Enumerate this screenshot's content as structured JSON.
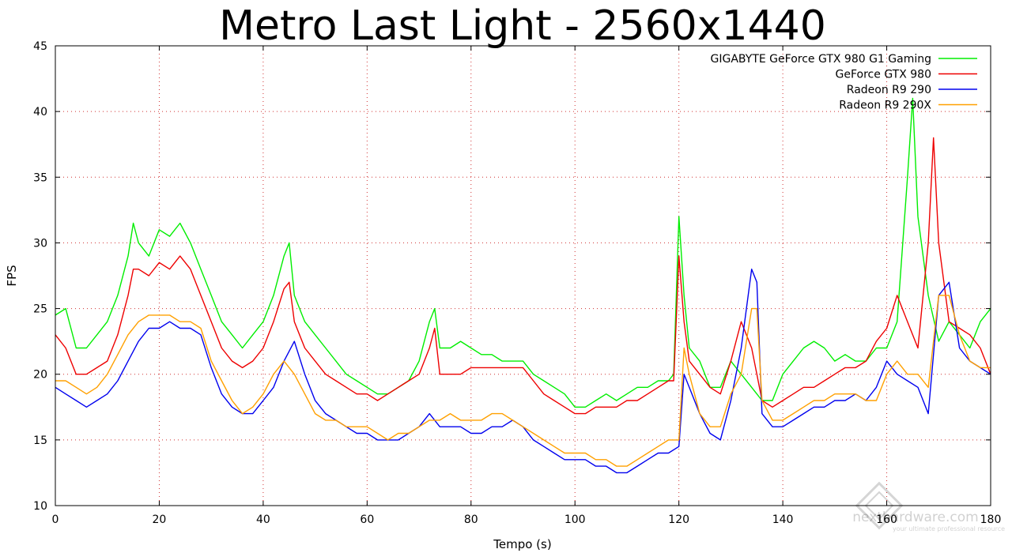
{
  "chart_data": {
    "type": "line",
    "title": "Metro Last Light - 2560x1440",
    "xlabel": "Tempo (s)",
    "ylabel": "FPS",
    "xlim": [
      0,
      180
    ],
    "ylim": [
      10,
      45
    ],
    "xticks": [
      0,
      20,
      40,
      60,
      80,
      100,
      120,
      140,
      160,
      180
    ],
    "yticks": [
      10,
      15,
      20,
      25,
      30,
      35,
      40,
      45
    ],
    "grid": true,
    "legend_position": "top-right",
    "series": [
      {
        "name": "GIGABYTE GeForce GTX 980 G1 Gaming",
        "color": "#00ee00",
        "x": [
          0,
          2,
          4,
          6,
          8,
          10,
          12,
          14,
          15,
          16,
          18,
          20,
          22,
          24,
          26,
          28,
          30,
          32,
          34,
          36,
          38,
          40,
          42,
          44,
          45,
          46,
          48,
          50,
          52,
          54,
          56,
          58,
          60,
          62,
          64,
          66,
          68,
          70,
          72,
          73,
          74,
          76,
          78,
          80,
          82,
          84,
          86,
          88,
          90,
          92,
          94,
          96,
          98,
          100,
          102,
          104,
          106,
          108,
          110,
          112,
          114,
          116,
          118,
          119,
          120,
          121,
          122,
          124,
          126,
          128,
          130,
          132,
          134,
          135,
          136,
          138,
          140,
          142,
          144,
          146,
          148,
          150,
          152,
          154,
          156,
          158,
          160,
          162,
          164,
          165,
          166,
          168,
          170,
          172,
          174,
          176,
          178,
          180
        ],
        "y": [
          24.5,
          25,
          22,
          22,
          23,
          24,
          26,
          29,
          31.5,
          30,
          29,
          31,
          30.5,
          31.5,
          30,
          28,
          26,
          24,
          23,
          22,
          23,
          24,
          26,
          29,
          30,
          26,
          24,
          23,
          22,
          21,
          20,
          19.5,
          19,
          18.5,
          18.5,
          19,
          19.5,
          21,
          24,
          25,
          22,
          22,
          22.5,
          22,
          21.5,
          21.5,
          21,
          21,
          21,
          20,
          19.5,
          19,
          18.5,
          17.5,
          17.5,
          18,
          18.5,
          18,
          18.5,
          19,
          19,
          19.5,
          19.5,
          20,
          32,
          26,
          22,
          21,
          19,
          19,
          21,
          20,
          19,
          18.5,
          18,
          18,
          20,
          21,
          22,
          22.5,
          22,
          21,
          21.5,
          21,
          21,
          22,
          22,
          24,
          35,
          41,
          32,
          26,
          22.5,
          24,
          23,
          22,
          24,
          25
        ]
      },
      {
        "name": "GeForce GTX 980",
        "color": "#ee0000",
        "x": [
          0,
          2,
          4,
          6,
          8,
          10,
          12,
          14,
          15,
          16,
          18,
          20,
          22,
          24,
          26,
          28,
          30,
          32,
          34,
          36,
          38,
          40,
          42,
          44,
          45,
          46,
          48,
          50,
          52,
          54,
          56,
          58,
          60,
          62,
          64,
          66,
          68,
          70,
          72,
          73,
          74,
          76,
          78,
          80,
          82,
          84,
          86,
          88,
          90,
          92,
          94,
          96,
          98,
          100,
          102,
          104,
          106,
          108,
          110,
          112,
          114,
          116,
          118,
          119,
          120,
          121,
          122,
          124,
          126,
          128,
          130,
          132,
          134,
          135,
          136,
          138,
          140,
          142,
          144,
          146,
          148,
          150,
          152,
          154,
          156,
          158,
          160,
          162,
          164,
          166,
          168,
          169,
          170,
          172,
          174,
          176,
          178,
          180
        ],
        "y": [
          23,
          22,
          20,
          20,
          20.5,
          21,
          23,
          26,
          28,
          28,
          27.5,
          28.5,
          28,
          29,
          28,
          26,
          24,
          22,
          21,
          20.5,
          21,
          22,
          24,
          26.5,
          27,
          24,
          22,
          21,
          20,
          19.5,
          19,
          18.5,
          18.5,
          18,
          18.5,
          19,
          19.5,
          20,
          22,
          23.5,
          20,
          20,
          20,
          20.5,
          20.5,
          20.5,
          20.5,
          20.5,
          20.5,
          19.5,
          18.5,
          18,
          17.5,
          17,
          17,
          17.5,
          17.5,
          17.5,
          18,
          18,
          18.5,
          19,
          19.5,
          19.5,
          29,
          24,
          21,
          20,
          19,
          18.5,
          21,
          24,
          22,
          20,
          18,
          17.5,
          18,
          18.5,
          19,
          19,
          19.5,
          20,
          20.5,
          20.5,
          21,
          22.5,
          23.5,
          26,
          24,
          22,
          30,
          38,
          30,
          24,
          23.5,
          23,
          22,
          20
        ]
      },
      {
        "name": "Radeon R9 290",
        "color": "#0000ee",
        "x": [
          0,
          2,
          4,
          6,
          8,
          10,
          12,
          14,
          16,
          18,
          20,
          22,
          24,
          26,
          28,
          30,
          32,
          34,
          36,
          38,
          40,
          42,
          44,
          46,
          48,
          50,
          52,
          54,
          56,
          58,
          60,
          62,
          64,
          66,
          68,
          70,
          72,
          74,
          76,
          78,
          80,
          82,
          84,
          86,
          88,
          90,
          92,
          94,
          96,
          98,
          100,
          102,
          104,
          106,
          108,
          110,
          112,
          114,
          116,
          118,
          120,
          121,
          122,
          124,
          126,
          128,
          130,
          132,
          134,
          135,
          136,
          138,
          140,
          142,
          144,
          146,
          148,
          150,
          152,
          154,
          156,
          158,
          160,
          162,
          164,
          166,
          168,
          170,
          172,
          174,
          176,
          178,
          180
        ],
        "y": [
          19,
          18.5,
          18,
          17.5,
          18,
          18.5,
          19.5,
          21,
          22.5,
          23.5,
          23.5,
          24,
          23.5,
          23.5,
          23,
          20.5,
          18.5,
          17.5,
          17,
          17,
          18,
          19,
          21,
          22.5,
          20,
          18,
          17,
          16.5,
          16,
          15.5,
          15.5,
          15,
          15,
          15,
          15.5,
          16,
          17,
          16,
          16,
          16,
          15.5,
          15.5,
          16,
          16,
          16.5,
          16,
          15,
          14.5,
          14,
          13.5,
          13.5,
          13.5,
          13,
          13,
          12.5,
          12.5,
          13,
          13.5,
          14,
          14,
          14.5,
          20,
          19,
          17,
          15.5,
          15,
          18,
          22,
          28,
          27,
          17,
          16,
          16,
          16.5,
          17,
          17.5,
          17.5,
          18,
          18,
          18.5,
          18,
          19,
          21,
          20,
          19.5,
          19,
          17,
          26,
          27,
          22,
          21,
          20.5,
          20
        ]
      },
      {
        "name": "Radeon R9 290X",
        "color": "#ffa000",
        "x": [
          0,
          2,
          4,
          6,
          8,
          10,
          12,
          14,
          16,
          18,
          20,
          22,
          24,
          26,
          28,
          30,
          32,
          34,
          36,
          38,
          40,
          42,
          44,
          46,
          48,
          50,
          52,
          54,
          56,
          58,
          60,
          62,
          64,
          66,
          68,
          70,
          72,
          74,
          76,
          78,
          80,
          82,
          84,
          86,
          88,
          90,
          92,
          94,
          96,
          98,
          100,
          102,
          104,
          106,
          108,
          110,
          112,
          114,
          116,
          118,
          120,
          121,
          122,
          124,
          126,
          128,
          130,
          132,
          134,
          135,
          136,
          138,
          140,
          142,
          144,
          146,
          148,
          150,
          152,
          154,
          156,
          158,
          160,
          162,
          164,
          166,
          168,
          170,
          172,
          174,
          176,
          178,
          180
        ],
        "y": [
          19.5,
          19.5,
          19,
          18.5,
          19,
          20,
          21.5,
          23,
          24,
          24.5,
          24.5,
          24.5,
          24,
          24,
          23.5,
          21,
          19.5,
          18,
          17,
          17.5,
          18.5,
          20,
          21,
          20,
          18.5,
          17,
          16.5,
          16.5,
          16,
          16,
          16,
          15.5,
          15,
          15.5,
          15.5,
          16,
          16.5,
          16.5,
          17,
          16.5,
          16.5,
          16.5,
          17,
          17,
          16.5,
          16,
          15.5,
          15,
          14.5,
          14,
          14,
          14,
          13.5,
          13.5,
          13,
          13,
          13.5,
          14,
          14.5,
          15,
          15,
          22,
          20,
          17,
          16,
          16,
          18.5,
          20,
          25,
          25,
          18,
          16.5,
          16.5,
          17,
          17.5,
          18,
          18,
          18.5,
          18.5,
          18.5,
          18,
          18,
          20,
          21,
          20,
          20,
          19,
          26,
          26,
          23,
          21,
          20.5,
          20.5
        ]
      }
    ]
  },
  "watermark": {
    "brand": "nexthardware.com",
    "tagline": "your ultimate professional resource"
  }
}
